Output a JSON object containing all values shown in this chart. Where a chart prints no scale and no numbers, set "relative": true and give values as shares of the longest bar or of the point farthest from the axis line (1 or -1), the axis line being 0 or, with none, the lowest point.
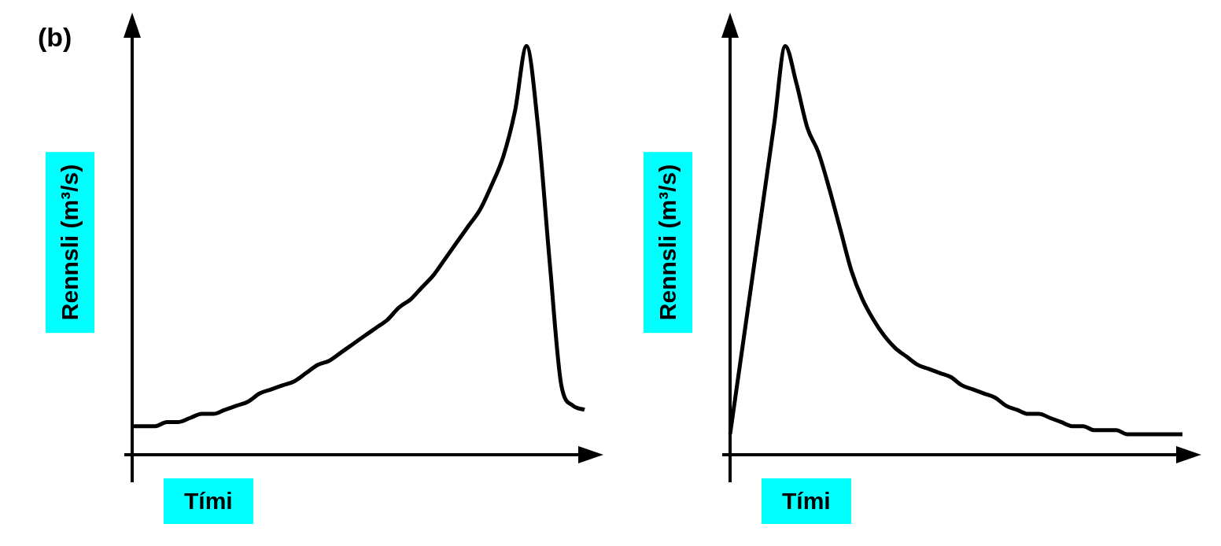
{
  "chart_data": [
    {
      "type": "line",
      "relative": true,
      "xlabel": "Tími",
      "ylabel": "Rennsli (m³/s)",
      "annotations": [
        "(b)"
      ],
      "marker": "none",
      "categories": [
        null,
        null,
        null,
        null,
        null,
        null,
        null,
        null,
        null,
        null,
        null,
        null,
        null,
        null,
        null,
        null,
        null,
        null,
        null,
        null,
        null,
        null,
        null,
        null,
        null,
        null,
        null,
        null,
        null,
        null,
        null,
        null,
        null,
        null,
        null,
        null,
        null,
        null,
        null,
        null
      ],
      "series": [
        {
          "color": "#000000",
          "values": [
            0.07,
            0.07,
            0.07,
            0.08,
            0.08,
            0.09,
            0.1,
            0.1,
            0.11,
            0.12,
            0.13,
            0.15,
            0.16,
            0.17,
            0.18,
            0.2,
            0.22,
            0.23,
            0.25,
            0.27,
            0.29,
            0.31,
            0.33,
            0.36,
            0.38,
            0.41,
            0.44,
            0.48,
            0.52,
            0.56,
            0.6,
            0.66,
            0.73,
            0.84,
            1,
            0.8,
            0.47,
            0.17,
            0.12,
            0.11
          ]
        }
      ]
    },
    {
      "type": "line",
      "relative": true,
      "xlabel": "Tími",
      "ylabel": "Rennsli (m³/s)",
      "marker": "none",
      "categories": [
        null,
        null,
        null,
        null,
        null,
        null,
        null,
        null,
        null,
        null,
        null,
        null,
        null,
        null,
        null,
        null,
        null,
        null,
        null,
        null,
        null,
        null,
        null,
        null,
        null,
        null,
        null,
        null,
        null,
        null,
        null,
        null,
        null,
        null,
        null,
        null,
        null,
        null,
        null,
        null,
        null,
        null
      ],
      "series": [
        {
          "color": "#000000",
          "values": [
            0.05,
            0.24,
            0.43,
            0.62,
            0.81,
            1,
            0.91,
            0.8,
            0.74,
            0.65,
            0.55,
            0.45,
            0.38,
            0.33,
            0.29,
            0.26,
            0.24,
            0.22,
            0.21,
            0.2,
            0.19,
            0.17,
            0.16,
            0.15,
            0.14,
            0.12,
            0.11,
            0.1,
            0.1,
            0.09,
            0.08,
            0.07,
            0.07,
            0.06,
            0.06,
            0.06,
            0.05,
            0.05,
            0.05,
            0.05,
            0.05,
            0.05
          ]
        }
      ]
    }
  ]
}
